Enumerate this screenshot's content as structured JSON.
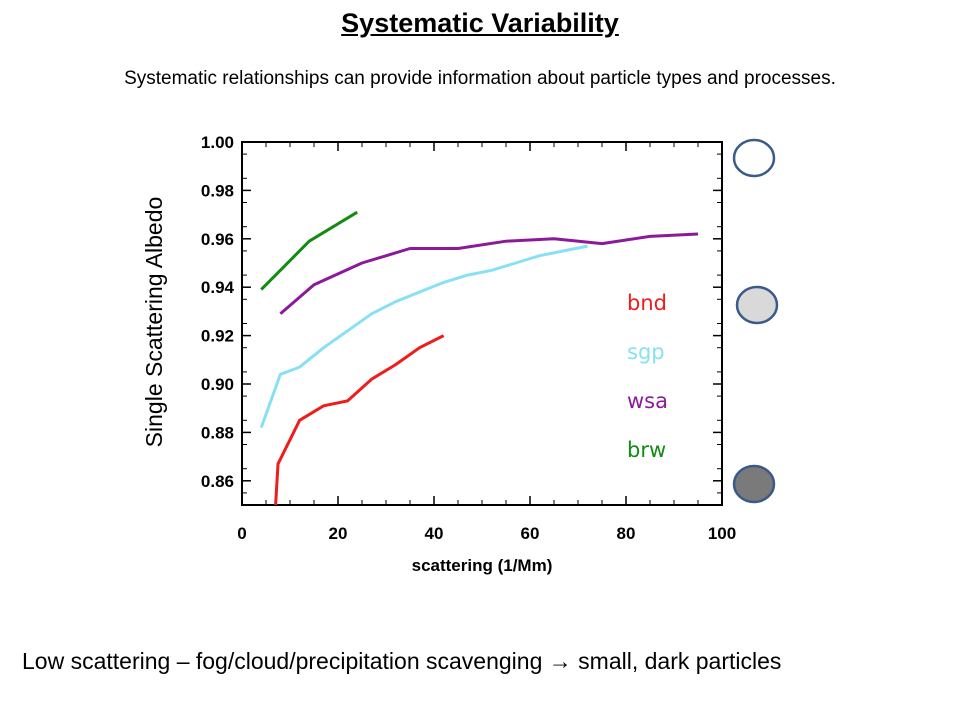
{
  "slide": {
    "title": "Systematic Variability",
    "subtitle": "Systematic relationships can provide information about particle types and processes.",
    "footer": "Low scattering – fog/cloud/precipitation scavenging → small, dark particles"
  },
  "markers": [
    {
      "name": "white-circle-marker",
      "fill": "#ffffff",
      "stroke": "#3a5a8a"
    },
    {
      "name": "light-gray-circle-marker",
      "fill": "#d9d9d9",
      "stroke": "#3a5a8a"
    },
    {
      "name": "dark-gray-circle-marker",
      "fill": "#7a7a7a",
      "stroke": "#3a5a8a"
    }
  ],
  "chart_data": {
    "type": "line",
    "xlabel": "scattering (1/Mm)",
    "ylabel": "Single Scattering Albedo",
    "xlim": [
      0,
      100
    ],
    "ylim": [
      0.85,
      1.0
    ],
    "xticks": [
      "0",
      "20",
      "40",
      "60",
      "80",
      "100"
    ],
    "yticks": [
      "0.86",
      "0.88",
      "0.90",
      "0.92",
      "0.94",
      "0.96",
      "0.98",
      "1.00"
    ],
    "legend_position": "right",
    "series": [
      {
        "name": "bnd",
        "color": "#ee1c1c",
        "x": [
          7,
          7.5,
          12,
          17,
          22,
          27,
          32,
          37,
          42
        ],
        "y": [
          0.85,
          0.867,
          0.885,
          0.891,
          0.893,
          0.902,
          0.908,
          0.915,
          0.92
        ]
      },
      {
        "name": "sgp",
        "color": "#88e0f5",
        "x": [
          4,
          8,
          12,
          17,
          22,
          27,
          32,
          37,
          42,
          47,
          52,
          57,
          62,
          67,
          72
        ],
        "y": [
          0.882,
          0.904,
          0.907,
          0.915,
          0.922,
          0.929,
          0.934,
          0.938,
          0.942,
          0.945,
          0.947,
          0.95,
          0.953,
          0.955,
          0.957
        ]
      },
      {
        "name": "wsa",
        "color": "#8b1a9b",
        "x": [
          8,
          15,
          25,
          35,
          45,
          55,
          65,
          75,
          85,
          95
        ],
        "y": [
          0.929,
          0.941,
          0.95,
          0.956,
          0.956,
          0.959,
          0.96,
          0.958,
          0.961,
          0.962
        ]
      },
      {
        "name": "brw",
        "color": "#138a13",
        "x": [
          4,
          9,
          14,
          19,
          24
        ],
        "y": [
          0.939,
          0.949,
          0.959,
          0.965,
          0.971
        ]
      }
    ]
  }
}
